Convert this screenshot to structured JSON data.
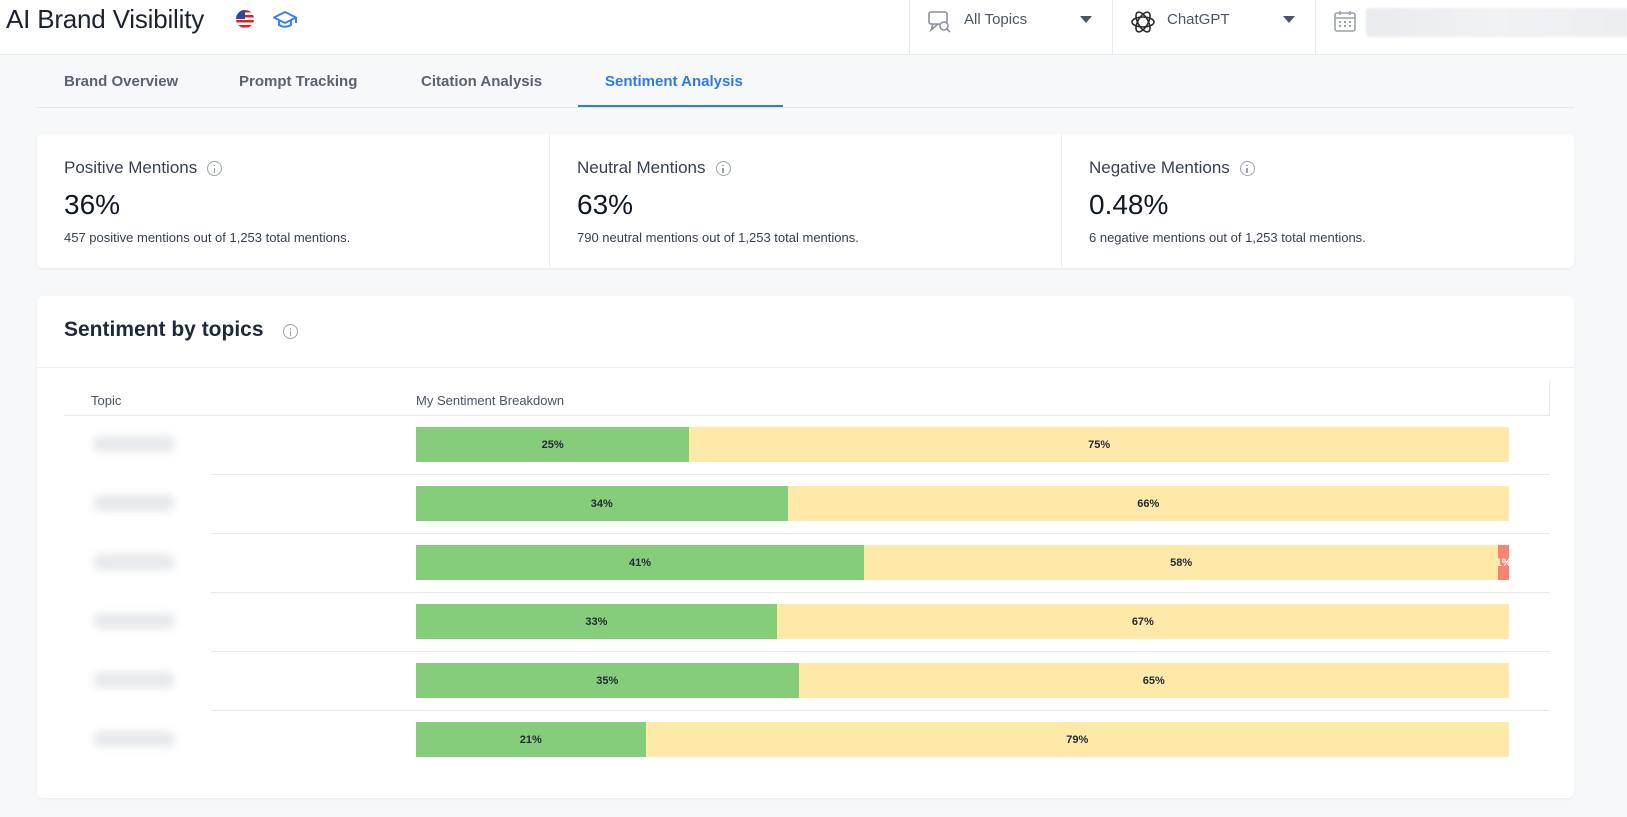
{
  "header": {
    "title": "AI Brand Visibility",
    "topics_filter": "All Topics",
    "model_filter": "ChatGPT"
  },
  "tabs": [
    {
      "label": "Brand Overview",
      "active": false
    },
    {
      "label": "Prompt Tracking",
      "active": false
    },
    {
      "label": "Citation Analysis",
      "active": false
    },
    {
      "label": "Sentiment Analysis",
      "active": true
    }
  ],
  "metrics": [
    {
      "label": "Positive Mentions",
      "value": "36%",
      "description": "457 positive mentions out of 1,253 total mentions."
    },
    {
      "label": "Neutral Mentions",
      "value": "63%",
      "description": "790 neutral mentions out of 1,253 total mentions."
    },
    {
      "label": "Negative Mentions",
      "value": "0.48%",
      "description": "6 negative mentions out of 1,253 total mentions."
    }
  ],
  "sentiment_by_topics": {
    "title": "Sentiment by topics",
    "columns": [
      "Topic",
      "My Sentiment Breakdown"
    ],
    "rows": [
      {
        "positive": 25,
        "neutral": 75,
        "negative": 0,
        "labels": [
          "25%",
          "75%",
          ""
        ]
      },
      {
        "positive": 34,
        "neutral": 66,
        "negative": 0,
        "labels": [
          "34%",
          "66%",
          ""
        ]
      },
      {
        "positive": 41,
        "neutral": 58,
        "negative": 1,
        "labels": [
          "41%",
          "58%",
          "1%"
        ]
      },
      {
        "positive": 33,
        "neutral": 67,
        "negative": 0,
        "labels": [
          "33%",
          "67%",
          ""
        ]
      },
      {
        "positive": 35,
        "neutral": 65,
        "negative": 0,
        "labels": [
          "35%",
          "65%",
          ""
        ]
      },
      {
        "positive": 21,
        "neutral": 79,
        "negative": 0,
        "labels": [
          "21%",
          "79%",
          ""
        ]
      }
    ]
  },
  "colors": {
    "accent": "#2f7be6",
    "positive": "#85cd7a",
    "neutral": "#fee9a9",
    "negative": "#f58474"
  }
}
